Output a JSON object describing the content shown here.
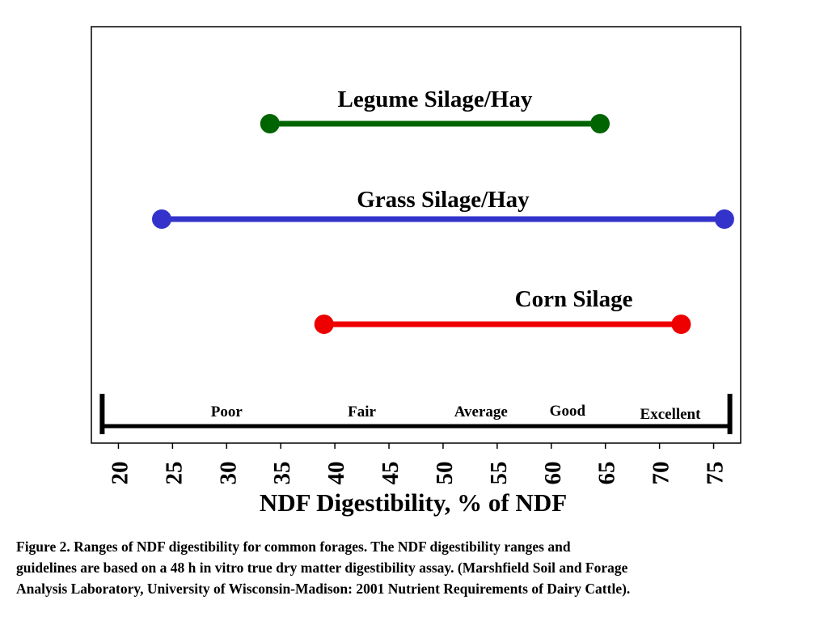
{
  "chart_data": {
    "type": "range",
    "xlabel": "NDF Digestibility, % of NDF",
    "xlim": [
      17.5,
      77.5
    ],
    "xticks": [
      20,
      25,
      30,
      35,
      40,
      45,
      50,
      55,
      60,
      65,
      70,
      75
    ],
    "grid": false,
    "series": [
      {
        "name": "Legume Silage/Hay",
        "start": 34,
        "end": 64.5,
        "color": "#006400"
      },
      {
        "name": "Grass Silage/Hay",
        "start": 24,
        "end": 76,
        "color": "#3333cc"
      },
      {
        "name": "Corn Silage",
        "start": 39,
        "end": 72,
        "color": "#ee0000"
      }
    ],
    "rating_scale": {
      "start": 18.5,
      "end": 76.5,
      "labels": [
        {
          "text": "Poor",
          "at": 30
        },
        {
          "text": "Fair",
          "at": 42.5
        },
        {
          "text": "Average",
          "at": 53.5
        },
        {
          "text": "Good",
          "at": 61.5
        },
        {
          "text": "Excellent",
          "at": 71
        }
      ]
    }
  },
  "caption": {
    "lines": [
      "Figure 2.  Ranges of NDF digestibility for common forages.  The NDF digestibility ranges and",
      "guidelines are based on a 48 h in vitro true dry matter digestibility assay. (Marshfield Soil and Forage",
      "Analysis Laboratory, University of Wisconsin-Madison: 2001 Nutrient Requirements of Dairy Cattle)."
    ]
  }
}
